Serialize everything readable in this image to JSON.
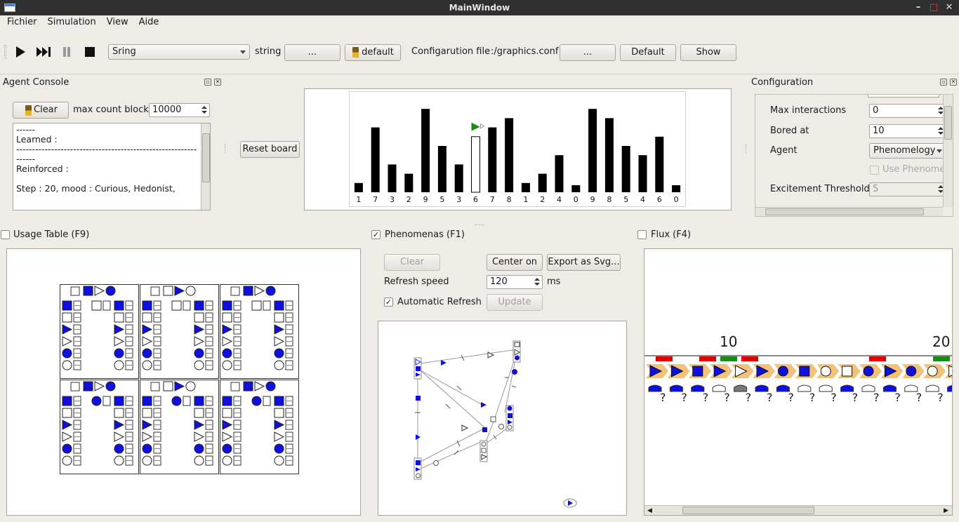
{
  "window": {
    "title": "MainWindow",
    "controls": [
      "–",
      "□",
      "✕"
    ]
  },
  "menu": [
    "Fichier",
    "Simulation",
    "View",
    "Aide"
  ],
  "toolbar": {
    "environment": "Sring",
    "string_label": "string",
    "string_button": "...",
    "default_button": "default",
    "config_label": "Configarution file",
    "config_path": ":/graphics.conf",
    "config_button": "...",
    "default2_button": "Default",
    "show_button": "Show",
    "icons": [
      "play-icon",
      "fast-forward-icon",
      "pause-icon",
      "stop-icon",
      "broom-icon"
    ]
  },
  "agent_console": {
    "title": "Agent Console",
    "clear": "Clear",
    "max_count_label": "max count block",
    "max_count_value": "10000",
    "log": [
      "------",
      "Learned :",
      "---------------------------------------------------------------",
      "------",
      "Reinforced :",
      "",
      "Step : 20, mood :  Curious,  Hedonist,"
    ]
  },
  "board": {
    "reset": "Reset board",
    "chart_data": {
      "type": "bar",
      "categories": [
        "1",
        "7",
        "3",
        "2",
        "9",
        "5",
        "3",
        "6",
        "7",
        "8",
        "1",
        "2",
        "4",
        "0",
        "9",
        "8",
        "5",
        "4",
        "6",
        "0"
      ],
      "values": [
        1,
        7,
        3,
        2,
        9,
        5,
        3,
        6,
        7,
        8,
        1,
        2,
        4,
        0,
        9,
        8,
        5,
        4,
        6,
        0
      ],
      "highlight_index": 7,
      "ylim": [
        0,
        10
      ]
    }
  },
  "configuration": {
    "title": "Configuration",
    "rows": [
      {
        "label": "Max interactions",
        "value": "0"
      },
      {
        "label": "Bored at",
        "value": "10"
      },
      {
        "label": "Agent",
        "value": "Phenomelogy"
      },
      {
        "label": "",
        "value": "Use Phenome"
      },
      {
        "label": "Excitement Threshold",
        "value": "5"
      }
    ]
  },
  "usage": {
    "title": "Usage Table (F9)"
  },
  "phenomenas": {
    "title": "Phenomenas (F1)",
    "clear": "Clear",
    "center": "Center on",
    "export": "Export as Svg...",
    "refresh_label": "Refresh speed",
    "refresh_value": "120",
    "refresh_unit": "ms",
    "auto_label": "Automatic Refresh",
    "update": "Update"
  },
  "flux": {
    "title": "Flux (F4)",
    "ticks": [
      "10",
      "20"
    ],
    "unknown": "?"
  }
}
